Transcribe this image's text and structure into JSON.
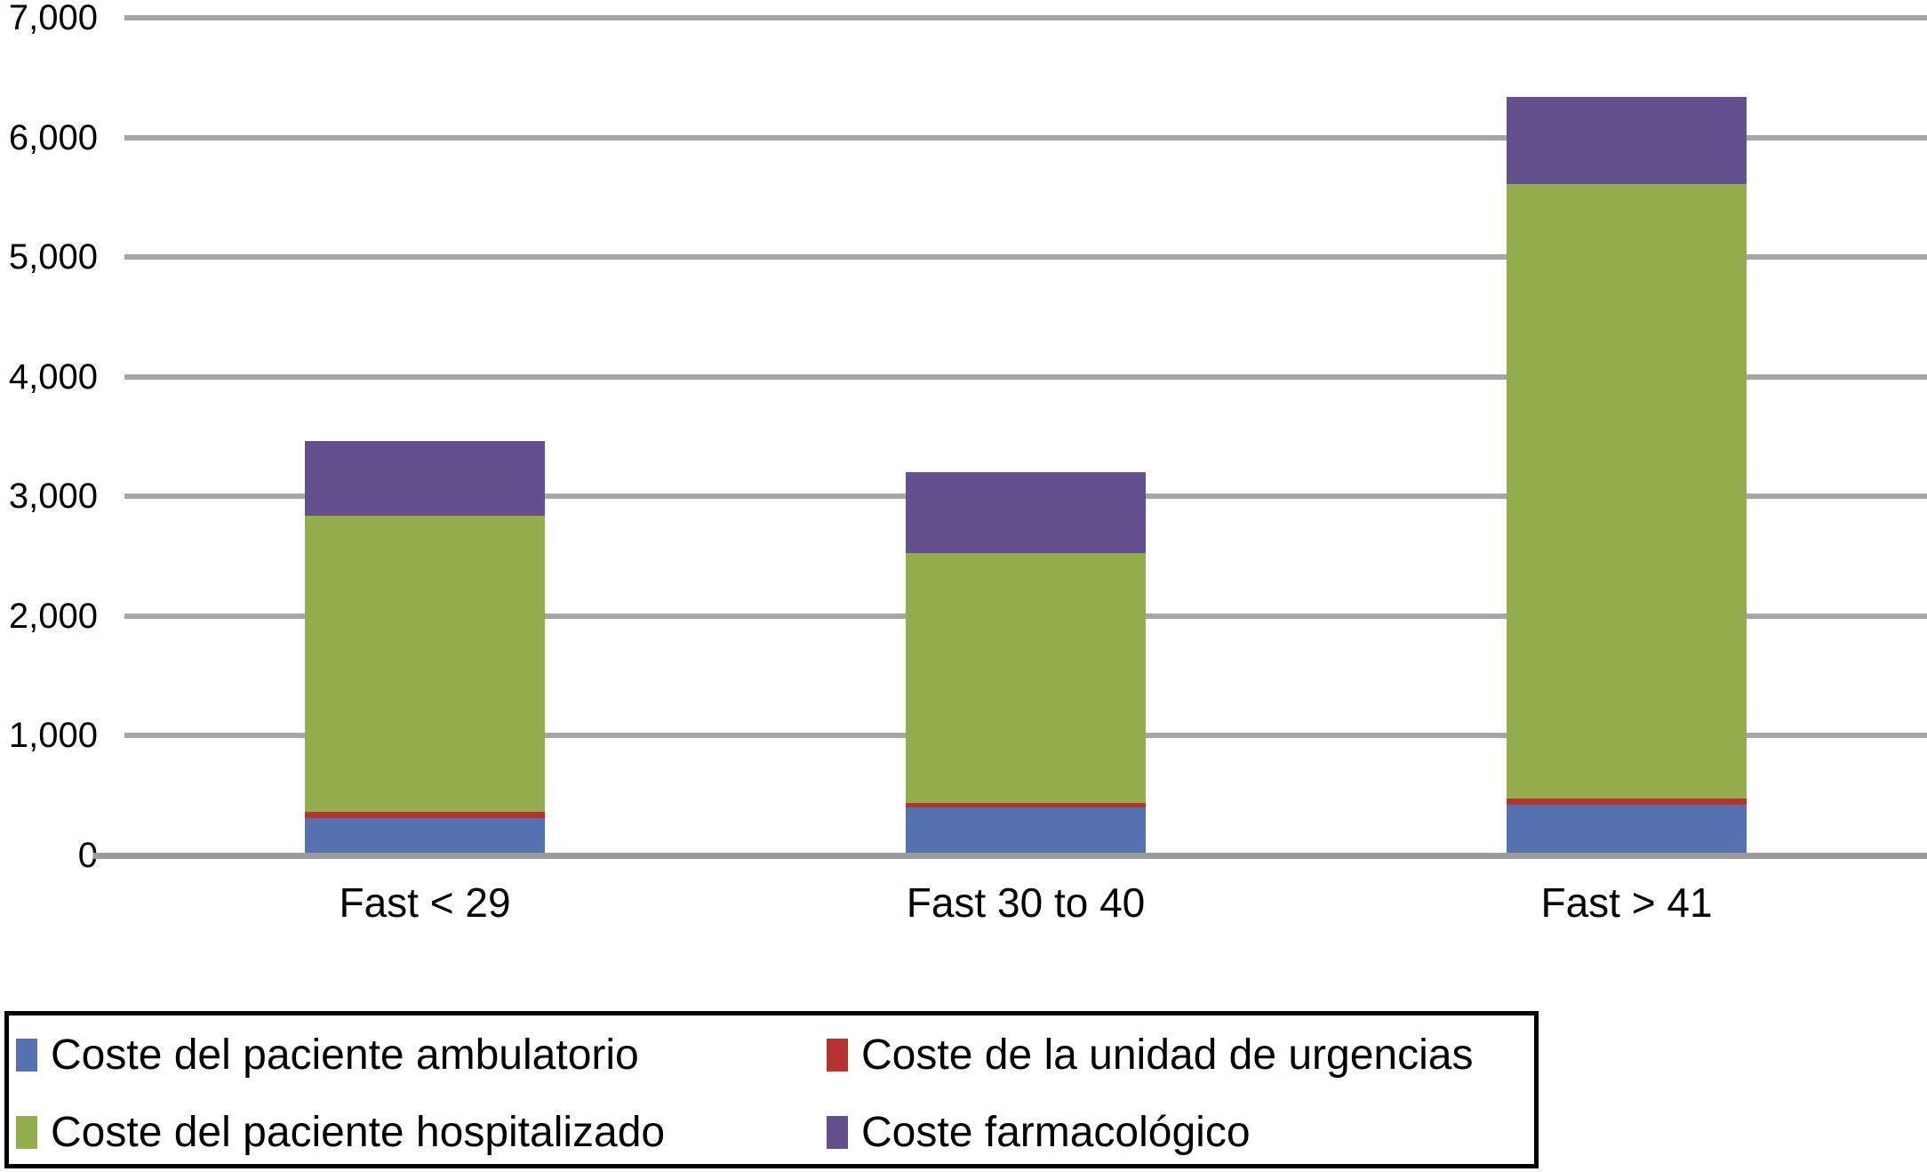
{
  "chart_data": {
    "type": "bar",
    "stacked": true,
    "title": "",
    "xlabel": "",
    "ylabel": "",
    "categories": [
      "Fast < 29",
      "Fast 30 to 40",
      "Fast > 41"
    ],
    "series": [
      {
        "name": "Coste del paciente ambulatorio",
        "color": "#5571B0",
        "values": [
          310,
          400,
          420
        ]
      },
      {
        "name": "Coste de la unidad de urgencias",
        "color": "#B5332F",
        "values": [
          55,
          40,
          55
        ]
      },
      {
        "name": "Coste del paciente hospitalizado",
        "color": "#93AD4D",
        "values": [
          2475,
          2085,
          5135
        ]
      },
      {
        "name": "Coste farmacológico",
        "color": "#65508F",
        "values": [
          620,
          675,
          730
        ]
      }
    ],
    "stack_order_bottom_to_top": [
      "Coste del paciente ambulatorio",
      "Coste de la unidad de urgencias",
      "Coste del paciente hospitalizado",
      "Coste farmacológico"
    ],
    "stack_totals": [
      3460,
      3200,
      6340
    ],
    "ylim": [
      0,
      7000
    ],
    "ytick_interval": 1000,
    "ytick_labels": [
      "0",
      "1,000",
      "2,000",
      "3,000",
      "4,000",
      "5,000",
      "6,000",
      "7,000"
    ],
    "grid": "horizontal",
    "gridline_color": "#A6A6A6",
    "axis_line_color": "#9C9C9C",
    "legend_position": "bottom-left",
    "legend_border_color": "#000000",
    "legend_layout": [
      [
        "Coste del paciente ambulatorio",
        "Coste de la unidad de urgencias"
      ],
      [
        "Coste del paciente hospitalizado",
        "Coste farmacológico"
      ]
    ]
  }
}
